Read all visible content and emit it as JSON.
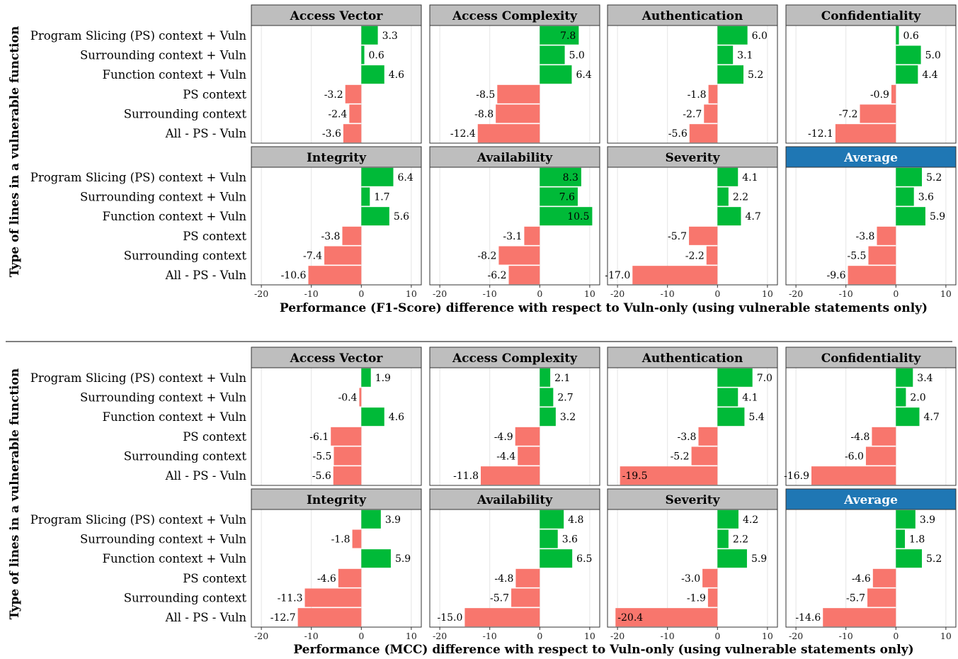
{
  "chart_data": [
    {
      "type": "bar",
      "orientation": "horizontal",
      "metric": "F1-Score",
      "ylabel": "Type of lines in a vulnerable function",
      "xlabel": "Performance (F1-Score) difference with respect to Vuln-only (using vulnerable statements only)",
      "categories": [
        "Program Slicing (PS) context + Vuln",
        "Surrounding context + Vuln",
        "Function context + Vuln",
        "PS context",
        "Surrounding context",
        "All - PS - Vuln"
      ],
      "xlim": [
        -22,
        12
      ],
      "xticks": [
        -20,
        -10,
        0,
        10
      ],
      "grid": true,
      "facets": [
        {
          "title": "Access Vector",
          "values": [
            3.3,
            0.6,
            4.6,
            -3.2,
            -2.4,
            -3.6
          ]
        },
        {
          "title": "Access Complexity",
          "values": [
            7.8,
            5.0,
            6.4,
            -8.5,
            -8.8,
            -12.4
          ]
        },
        {
          "title": "Authentication",
          "values": [
            6.0,
            3.1,
            5.2,
            -1.8,
            -2.7,
            -5.6
          ]
        },
        {
          "title": "Confidentiality",
          "values": [
            0.6,
            5.0,
            4.4,
            -0.9,
            -7.2,
            -12.1
          ]
        },
        {
          "title": "Integrity",
          "values": [
            6.4,
            1.7,
            5.6,
            -3.8,
            -7.4,
            -10.6
          ]
        },
        {
          "title": "Availability",
          "values": [
            8.3,
            7.6,
            10.5,
            -3.1,
            -8.2,
            -6.2
          ]
        },
        {
          "title": "Severity",
          "values": [
            4.1,
            2.2,
            4.7,
            -5.7,
            -2.2,
            -17.0
          ]
        },
        {
          "title": "Average",
          "values": [
            5.2,
            3.6,
            5.9,
            -3.8,
            -5.5,
            -9.6
          ],
          "highlight": true
        }
      ]
    },
    {
      "type": "bar",
      "orientation": "horizontal",
      "metric": "MCC",
      "ylabel": "Type of lines in a vulnerable function",
      "xlabel": "Performance (MCC) difference with respect to Vuln-only (using vulnerable statements only)",
      "categories": [
        "Program Slicing (PS) context + Vuln",
        "Surrounding context + Vuln",
        "Function context + Vuln",
        "PS context",
        "Surrounding context",
        "All - PS - Vuln"
      ],
      "xlim": [
        -22,
        12
      ],
      "xticks": [
        -20,
        -10,
        0,
        10
      ],
      "grid": true,
      "facets": [
        {
          "title": "Access Vector",
          "values": [
            1.9,
            -0.4,
            4.6,
            -6.1,
            -5.5,
            -5.6
          ]
        },
        {
          "title": "Access Complexity",
          "values": [
            2.1,
            2.7,
            3.2,
            -4.9,
            -4.4,
            -11.8
          ]
        },
        {
          "title": "Authentication",
          "values": [
            7.0,
            4.1,
            5.4,
            -3.8,
            -5.2,
            -19.5
          ]
        },
        {
          "title": "Confidentiality",
          "values": [
            3.4,
            2.0,
            4.7,
            -4.8,
            -6.0,
            -16.9
          ]
        },
        {
          "title": "Integrity",
          "values": [
            3.9,
            -1.8,
            5.9,
            -4.6,
            -11.3,
            -12.7
          ]
        },
        {
          "title": "Availability",
          "values": [
            4.8,
            3.6,
            6.5,
            -4.8,
            -5.7,
            -15.0
          ]
        },
        {
          "title": "Severity",
          "values": [
            4.2,
            2.2,
            5.9,
            -3.0,
            -1.9,
            -20.4
          ]
        },
        {
          "title": "Average",
          "values": [
            3.9,
            1.8,
            5.2,
            -4.6,
            -5.7,
            -14.6
          ],
          "highlight": true
        }
      ]
    }
  ],
  "colors": {
    "positive": "#00BA38",
    "negative": "#F8766D",
    "strip": "#BEBEBE",
    "strip_highlight": "#1F77B4",
    "grid": "#E5E5E5",
    "border": "#333333"
  }
}
